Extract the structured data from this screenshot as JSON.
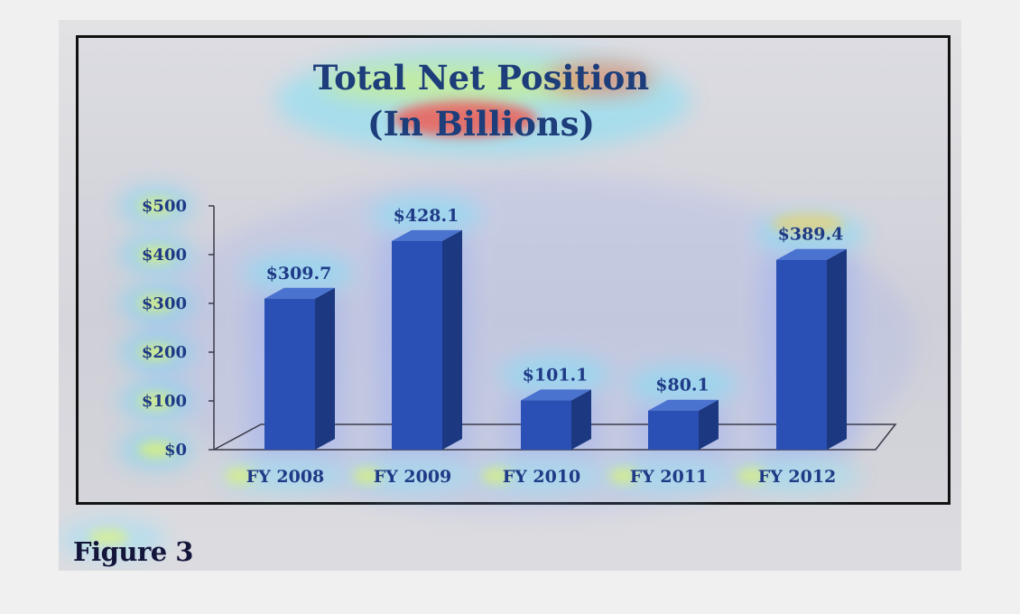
{
  "figure": {
    "caption": "Figure 3"
  },
  "chart_data": {
    "type": "bar",
    "title_lines": [
      "Total Net Position",
      "(In Billions)"
    ],
    "categories": [
      "FY 2008",
      "FY 2009",
      "FY 2010",
      "FY 2011",
      "FY 2012"
    ],
    "values": [
      309.7,
      428.1,
      101.1,
      80.1,
      389.4
    ],
    "data_labels": [
      "$309.7",
      "$428.1",
      "$101.1",
      "$80.1",
      "$389.4"
    ],
    "y_ticks": [
      0,
      100,
      200,
      300,
      400,
      500
    ],
    "y_tick_labels": [
      "$0",
      "$100",
      "$200",
      "$300",
      "$400",
      "$500"
    ],
    "ylim": [
      0,
      500
    ],
    "xlabel": "",
    "ylabel": "",
    "legend": "none",
    "grid": false,
    "bar_style": "3d",
    "colors": {
      "bar_front": "#2a4fb5",
      "bar_side": "#1b3880",
      "bar_top": "#4a72cf",
      "title": "#1d3e7a",
      "labels": "#1f3a86",
      "overlay": "heatmap"
    }
  }
}
